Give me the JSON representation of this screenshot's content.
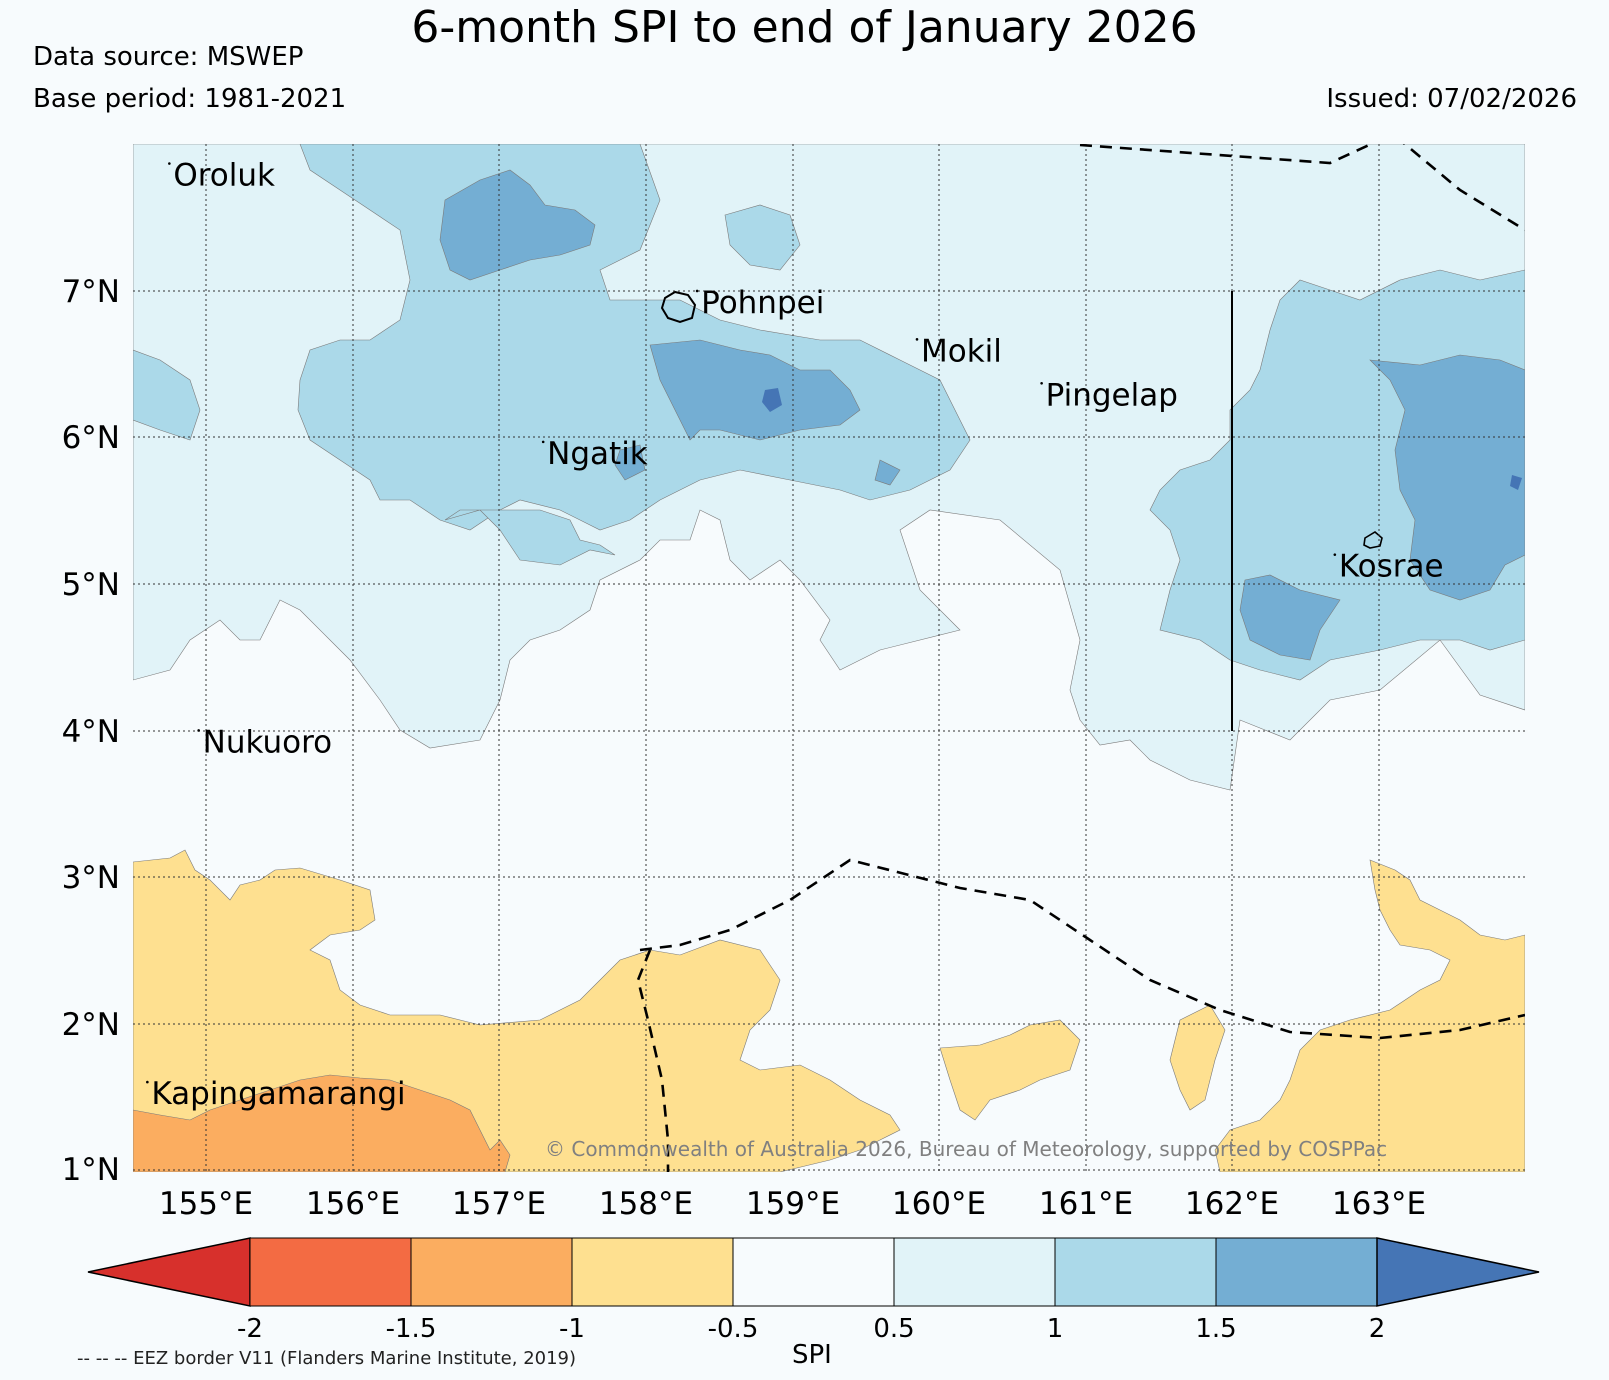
{
  "title": "6-month SPI to end of January 2026",
  "data_source": "Data source: MSWEP",
  "base_period": "Base period: 1981-2021",
  "issued": "Issued: 07/02/2026",
  "credit": "© Commonwealth of Australia 2026, Bureau of Meteorology, supported by COSPPac",
  "eez_note": "-- -- -- EEZ border V11 (Flanders Marine Institute, 2019)",
  "colorbar": {
    "label": "SPI",
    "ticks": [
      "-2",
      "-1.5",
      "-1",
      "-0.5",
      "0.5",
      "1",
      "1.5",
      "2"
    ],
    "colors": {
      "lt_-2": "#d7302c",
      "-2_-1.5": "#f36b43",
      "-1.5_-1": "#fbad60",
      "-1_-0.5": "#fee090",
      "-0.5_0.5": "#f7fbfd",
      "0.5_1": "#e1f3f8",
      "1_1.5": "#abd9e9",
      "1.5_2": "#74aed3",
      "gt_2": "#4575b5"
    }
  },
  "axes": {
    "lat_labels": [
      "7°N",
      "6°N",
      "5°N",
      "4°N",
      "3°N",
      "2°N",
      "1°N"
    ],
    "lon_labels": [
      "155°E",
      "156°E",
      "157°E",
      "158°E",
      "159°E",
      "160°E",
      "161°E",
      "162°E",
      "163°E"
    ]
  },
  "places": [
    {
      "name": "Oroluk",
      "lon": 154.75,
      "lat": 7.72
    },
    {
      "name": "Pohnpei",
      "lon": 158.35,
      "lat": 6.85
    },
    {
      "name": "Mokil",
      "lon": 159.85,
      "lat": 6.52
    },
    {
      "name": "Pingelap",
      "lon": 160.7,
      "lat": 6.22
    },
    {
      "name": "Ngatik",
      "lon": 157.3,
      "lat": 5.82
    },
    {
      "name": "Kosrae",
      "lon": 162.7,
      "lat": 5.05
    },
    {
      "name": "Nukuoro",
      "lon": 154.95,
      "lat": 3.85
    },
    {
      "name": "Kapingamarangi",
      "lon": 154.6,
      "lat": 1.45
    }
  ]
}
